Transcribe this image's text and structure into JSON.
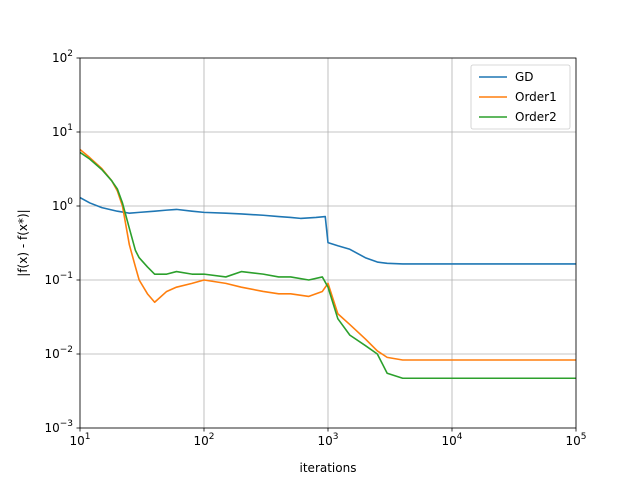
{
  "chart_data": {
    "type": "line",
    "title": "",
    "xlabel": "iterations",
    "ylabel": "|f(x) - f(x*)|",
    "xscale": "log",
    "yscale": "log",
    "xlim": [
      10,
      100000
    ],
    "ylim": [
      0.001,
      100
    ],
    "x_ticks": [
      {
        "value": 10,
        "base": "10",
        "exp": "1"
      },
      {
        "value": 100,
        "base": "10",
        "exp": "2"
      },
      {
        "value": 1000,
        "base": "10",
        "exp": "3"
      },
      {
        "value": 10000,
        "base": "10",
        "exp": "4"
      },
      {
        "value": 100000,
        "base": "10",
        "exp": "5"
      }
    ],
    "y_ticks": [
      {
        "value": 0.001,
        "base": "10",
        "exp": "−3"
      },
      {
        "value": 0.01,
        "base": "10",
        "exp": "−2"
      },
      {
        "value": 0.1,
        "base": "10",
        "exp": "−1"
      },
      {
        "value": 1,
        "base": "10",
        "exp": "0"
      },
      {
        "value": 10,
        "base": "10",
        "exp": "1"
      },
      {
        "value": 100,
        "base": "10",
        "exp": "2"
      }
    ],
    "grid": true,
    "legend": "top-right",
    "series": [
      {
        "name": "GD",
        "color": "#1f77b4",
        "points": [
          [
            10,
            1.3
          ],
          [
            12,
            1.1
          ],
          [
            15,
            0.95
          ],
          [
            20,
            0.85
          ],
          [
            25,
            0.8
          ],
          [
            30,
            0.82
          ],
          [
            40,
            0.85
          ],
          [
            50,
            0.88
          ],
          [
            60,
            0.9
          ],
          [
            80,
            0.85
          ],
          [
            100,
            0.82
          ],
          [
            150,
            0.8
          ],
          [
            200,
            0.78
          ],
          [
            300,
            0.75
          ],
          [
            400,
            0.72
          ],
          [
            500,
            0.7
          ],
          [
            600,
            0.68
          ],
          [
            800,
            0.7
          ],
          [
            950,
            0.72
          ],
          [
            1000,
            0.32
          ],
          [
            1200,
            0.29
          ],
          [
            1500,
            0.26
          ],
          [
            2000,
            0.2
          ],
          [
            2500,
            0.175
          ],
          [
            3000,
            0.168
          ],
          [
            4000,
            0.165
          ],
          [
            10000,
            0.165
          ],
          [
            100000,
            0.165
          ]
        ]
      },
      {
        "name": "Order1",
        "color": "#ff7f0e",
        "points": [
          [
            10,
            5.8
          ],
          [
            12,
            4.5
          ],
          [
            15,
            3.2
          ],
          [
            18,
            2.2
          ],
          [
            20,
            1.6
          ],
          [
            22,
            1.0
          ],
          [
            25,
            0.3
          ],
          [
            28,
            0.15
          ],
          [
            30,
            0.1
          ],
          [
            35,
            0.065
          ],
          [
            40,
            0.05
          ],
          [
            50,
            0.07
          ],
          [
            60,
            0.08
          ],
          [
            80,
            0.09
          ],
          [
            100,
            0.1
          ],
          [
            150,
            0.09
          ],
          [
            200,
            0.08
          ],
          [
            300,
            0.07
          ],
          [
            400,
            0.065
          ],
          [
            500,
            0.065
          ],
          [
            700,
            0.06
          ],
          [
            900,
            0.07
          ],
          [
            1000,
            0.09
          ],
          [
            1200,
            0.035
          ],
          [
            1500,
            0.025
          ],
          [
            2000,
            0.016
          ],
          [
            2500,
            0.011
          ],
          [
            3000,
            0.009
          ],
          [
            4000,
            0.0083
          ],
          [
            10000,
            0.0083
          ],
          [
            100000,
            0.0083
          ]
        ]
      },
      {
        "name": "Order2",
        "color": "#2ca02c",
        "points": [
          [
            10,
            5.3
          ],
          [
            12,
            4.3
          ],
          [
            15,
            3.1
          ],
          [
            18,
            2.2
          ],
          [
            20,
            1.7
          ],
          [
            22,
            1.1
          ],
          [
            25,
            0.5
          ],
          [
            28,
            0.25
          ],
          [
            30,
            0.2
          ],
          [
            35,
            0.15
          ],
          [
            40,
            0.12
          ],
          [
            50,
            0.12
          ],
          [
            60,
            0.13
          ],
          [
            80,
            0.12
          ],
          [
            100,
            0.12
          ],
          [
            150,
            0.11
          ],
          [
            200,
            0.13
          ],
          [
            300,
            0.12
          ],
          [
            400,
            0.11
          ],
          [
            500,
            0.11
          ],
          [
            700,
            0.1
          ],
          [
            900,
            0.11
          ],
          [
            1000,
            0.08
          ],
          [
            1200,
            0.03
          ],
          [
            1500,
            0.018
          ],
          [
            2000,
            0.013
          ],
          [
            2500,
            0.01
          ],
          [
            3000,
            0.0055
          ],
          [
            4000,
            0.0047
          ],
          [
            10000,
            0.0047
          ],
          [
            100000,
            0.0047
          ]
        ]
      }
    ]
  }
}
